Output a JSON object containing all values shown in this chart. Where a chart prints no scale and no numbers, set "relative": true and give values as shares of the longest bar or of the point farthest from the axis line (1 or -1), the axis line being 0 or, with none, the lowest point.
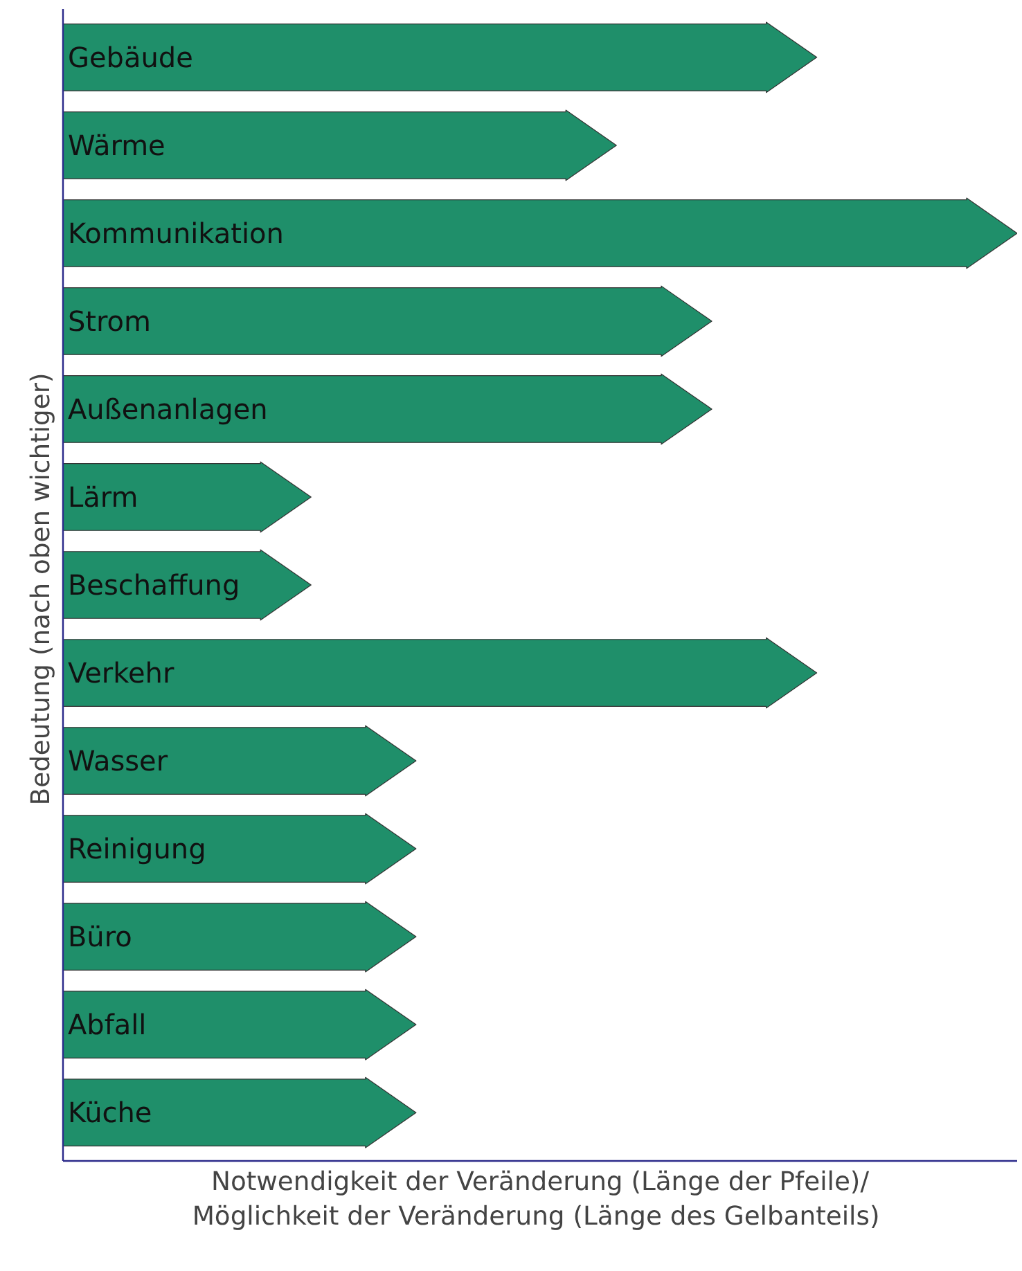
{
  "chart_data": {
    "type": "bar",
    "orientation": "horizontal",
    "relative": true,
    "categories": [
      "Gebäude",
      "Wärme",
      "Kommunikation",
      "Strom",
      "Außenanlagen",
      "Lärm",
      "Beschaffung",
      "Verkehr",
      "Wasser",
      "Reinigung",
      "Büro",
      "Abfall",
      "Küche"
    ],
    "values": [
      0.79,
      0.58,
      1,
      0.68,
      0.68,
      0.26,
      0.26,
      0.79,
      0.37,
      0.37,
      0.37,
      0.37,
      0.37
    ],
    "color": "#1f8f6a",
    "xlabel": "Notwendigkeit der Veränderung (Länge der Pfeile)/\nMöglichkeit  der Veränderung (Länge des Gelbanteils)",
    "ylabel": "Bedeutung  (nach oben wichtiger)"
  }
}
